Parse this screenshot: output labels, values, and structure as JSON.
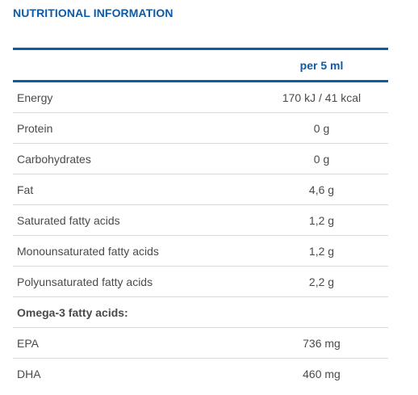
{
  "title": "NUTRITIONAL INFORMATION",
  "table": {
    "header": [
      "",
      "per 5 ml"
    ],
    "rows": [
      {
        "label": "Energy",
        "value": "170 kJ / 41 kcal"
      },
      {
        "label": "Protein",
        "value": "0 g"
      },
      {
        "label": "Carbohydrates",
        "value": "0 g"
      },
      {
        "label": "Fat",
        "value": "4,6 g"
      },
      {
        "label": "Saturated fatty acids",
        "value": "1,2 g"
      },
      {
        "label": "Monounsaturated fatty acids",
        "value": "1,2 g"
      },
      {
        "label": "Polyunsaturated fatty acids",
        "value": "2,2 g"
      },
      {
        "label": "Omega-3 fatty acids:",
        "value": ""
      },
      {
        "label": "EPA",
        "value": "736 mg"
      },
      {
        "label": "DHA",
        "value": "460 mg"
      }
    ]
  },
  "colors": {
    "accent": "#0d5aa7",
    "text": "#4a4a4a",
    "divider": "#d9d9d9"
  }
}
